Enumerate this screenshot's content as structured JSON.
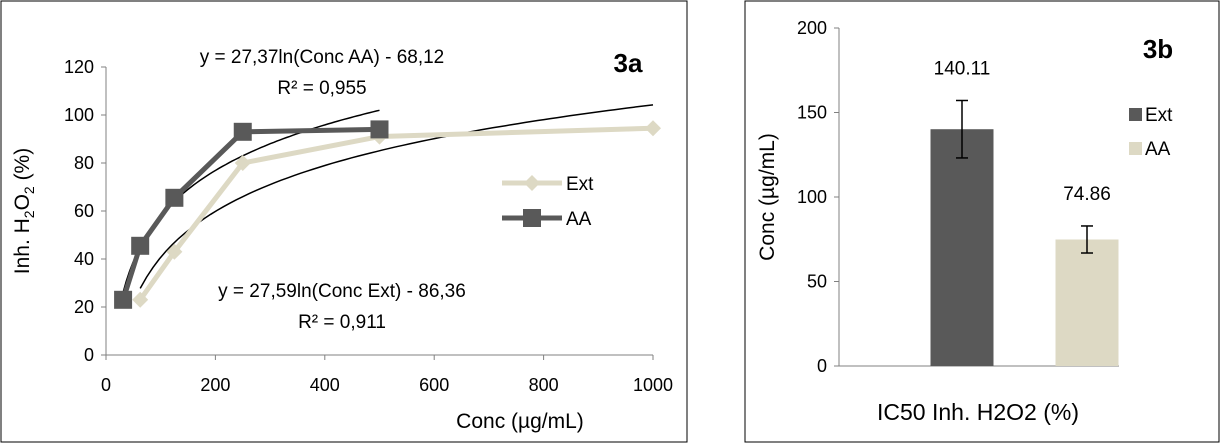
{
  "chart_data": [
    {
      "type": "line",
      "panel_label": "3a",
      "xlabel": "Conc (µg/mL)",
      "ylabel": "Inh. H2O2 (%)",
      "ylabel_parts": {
        "pre": "Inh. H",
        "sub1": "2",
        "mid": "O",
        "sub2": "2",
        "post": " (%)"
      },
      "xlim": [
        0,
        1000
      ],
      "ylim": [
        0,
        120
      ],
      "xticks": [
        0,
        200,
        400,
        600,
        800,
        1000
      ],
      "yticks": [
        0,
        20,
        40,
        60,
        80,
        100,
        120
      ],
      "grid": false,
      "legend_position": "right",
      "series": [
        {
          "name": "Ext",
          "color": "#ddd9c4",
          "marker": "diamond",
          "x": [
            62.5,
            125,
            250,
            500,
            1000
          ],
          "y": [
            23,
            43,
            80,
            91,
            94.5
          ]
        },
        {
          "name": "AA",
          "color": "#595959",
          "marker": "square",
          "x": [
            31.25,
            62.5,
            125,
            250,
            500
          ],
          "y": [
            23,
            45.5,
            65.5,
            93,
            94
          ]
        }
      ],
      "trendlines": [
        {
          "series": "AA",
          "a": 27.37,
          "b": -68.12,
          "x_range": [
            31.25,
            500
          ],
          "equation": "y = 27,37ln(Conc AA) - 68,12",
          "r2": "R² = 0,955"
        },
        {
          "series": "Ext",
          "a": 27.59,
          "b": -86.36,
          "x_range": [
            62.5,
            1000
          ],
          "equation": "y = 27,59ln(Conc Ext) - 86,36",
          "r2": "R² = 0,911"
        }
      ]
    },
    {
      "type": "bar",
      "panel_label": "3b",
      "xlabel": "IC50  Inh. H2O2 (%)",
      "ylabel": "Conc (µg/mL)",
      "ylim": [
        0,
        200
      ],
      "yticks": [
        0,
        50,
        100,
        150,
        200
      ],
      "grid": false,
      "legend_position": "right",
      "series": [
        {
          "name": "Ext",
          "value": 140.11,
          "label": "140.11",
          "error": 17,
          "color": "#595959"
        },
        {
          "name": "AA",
          "value": 74.86,
          "label": "74.86",
          "error": 8,
          "color": "#ddd9c4"
        }
      ]
    }
  ]
}
